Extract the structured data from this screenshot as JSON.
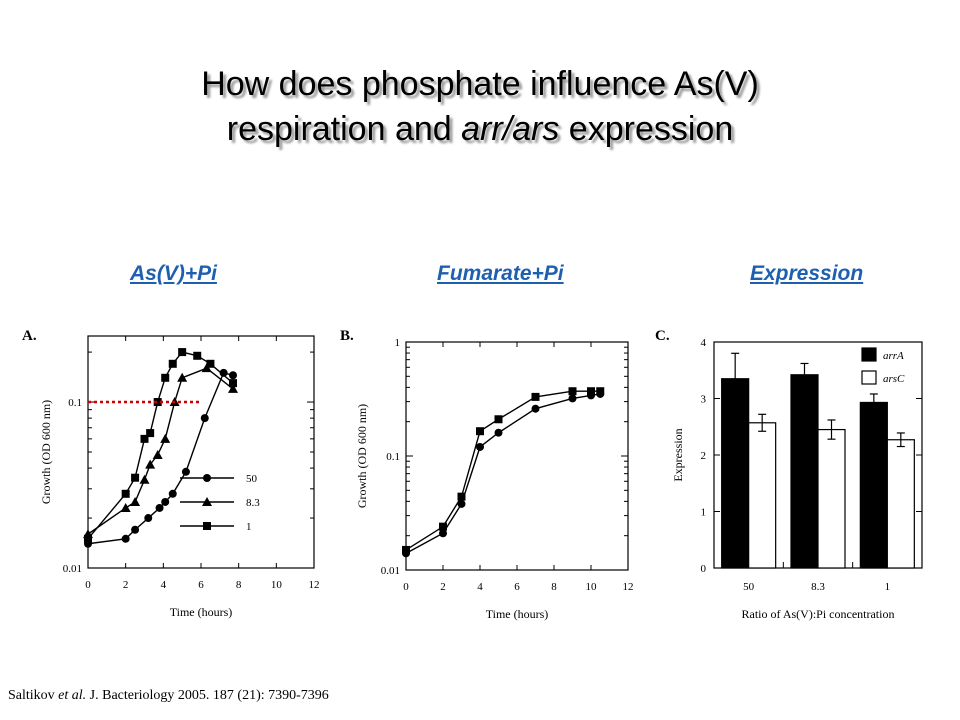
{
  "slide": {
    "title_line1": "How does phosphate influence As(V)",
    "title_line2_a": "respiration and ",
    "title_line2_b": "arr/ars",
    "title_line2_c": " expression",
    "headings": [
      "As(V)+Pi",
      "Fumarate+Pi",
      "Expression"
    ],
    "citation_authors": "Saltikov ",
    "citation_etal": "et al.",
    "citation_rest": " J. Bacteriology 2005. 187 (21): 7390-7396",
    "heading_color": "#1f5fb0",
    "dotted_line_color": "#cc0000"
  },
  "chart_data": [
    {
      "panel": "A.",
      "type": "line",
      "xlabel": "Time (hours)",
      "ylabel": "Growth (OD 600 nm)",
      "xlim": [
        0,
        12
      ],
      "ylim": [
        0.01,
        0.25
      ],
      "yscale": "log",
      "xticks": [
        "0",
        "2",
        "4",
        "6",
        "8",
        "10",
        "12"
      ],
      "yticks": [
        "0.01",
        "0.1"
      ],
      "legend_title": "",
      "series": [
        {
          "name": "50",
          "marker": "circle",
          "x": [
            0,
            2,
            2.5,
            3.2,
            3.8,
            4.1,
            4.5,
            5.2,
            6.2,
            7.2,
            7.7
          ],
          "y": [
            0.014,
            0.015,
            0.017,
            0.02,
            0.023,
            0.025,
            0.028,
            0.038,
            0.08,
            0.15,
            0.145
          ]
        },
        {
          "name": "8.3",
          "marker": "triangle",
          "x": [
            0,
            2,
            2.5,
            3.0,
            3.3,
            3.7,
            4.1,
            4.6,
            5.0,
            6.3,
            7.7
          ],
          "y": [
            0.016,
            0.023,
            0.025,
            0.034,
            0.042,
            0.048,
            0.06,
            0.1,
            0.14,
            0.16,
            0.12
          ]
        },
        {
          "name": "1",
          "marker": "square",
          "x": [
            0,
            2,
            2.5,
            3.0,
            3.3,
            3.7,
            4.1,
            4.5,
            5.0,
            5.8,
            6.5,
            7.7
          ],
          "y": [
            0.015,
            0.028,
            0.035,
            0.06,
            0.065,
            0.1,
            0.14,
            0.17,
            0.2,
            0.19,
            0.17,
            0.13
          ]
        }
      ],
      "reference_line": {
        "y": 0.1,
        "x": [
          0,
          6
        ]
      }
    },
    {
      "panel": "B.",
      "type": "line",
      "xlabel": "Time (hours)",
      "ylabel": "Growth (OD 600 nm)",
      "xlim": [
        0,
        12
      ],
      "ylim": [
        0.01,
        1
      ],
      "yscale": "log",
      "xticks": [
        "0",
        "2",
        "4",
        "6",
        "8",
        "10",
        "12"
      ],
      "yticks": [
        "0.01",
        "0.1",
        "1"
      ],
      "series": [
        {
          "name": "",
          "marker": "circle",
          "x": [
            0,
            2,
            3,
            4,
            5,
            7,
            9,
            10,
            10.5
          ],
          "y": [
            0.014,
            0.021,
            0.038,
            0.12,
            0.16,
            0.26,
            0.32,
            0.34,
            0.35
          ]
        },
        {
          "name": "",
          "marker": "square",
          "x": [
            0,
            2,
            3,
            4,
            5,
            7,
            9,
            10,
            10.5
          ],
          "y": [
            0.015,
            0.024,
            0.044,
            0.165,
            0.21,
            0.33,
            0.37,
            0.37,
            0.37
          ]
        }
      ]
    },
    {
      "panel": "C.",
      "type": "bar",
      "xlabel": "Ratio of As(V):Pi concentration",
      "ylabel": "Expression",
      "ylim": [
        0,
        4
      ],
      "yticks": [
        "0",
        "1",
        "2",
        "3",
        "4"
      ],
      "categories": [
        "50",
        "8.3",
        "1"
      ],
      "series": [
        {
          "name": "arrA",
          "fill": "#000000",
          "values": [
            3.35,
            3.42,
            2.93
          ],
          "errors": [
            0.45,
            0.2,
            0.15
          ]
        },
        {
          "name": "arsC",
          "fill": "#ffffff",
          "values": [
            2.57,
            2.45,
            2.27
          ],
          "errors": [
            0.15,
            0.17,
            0.12
          ]
        }
      ]
    }
  ]
}
